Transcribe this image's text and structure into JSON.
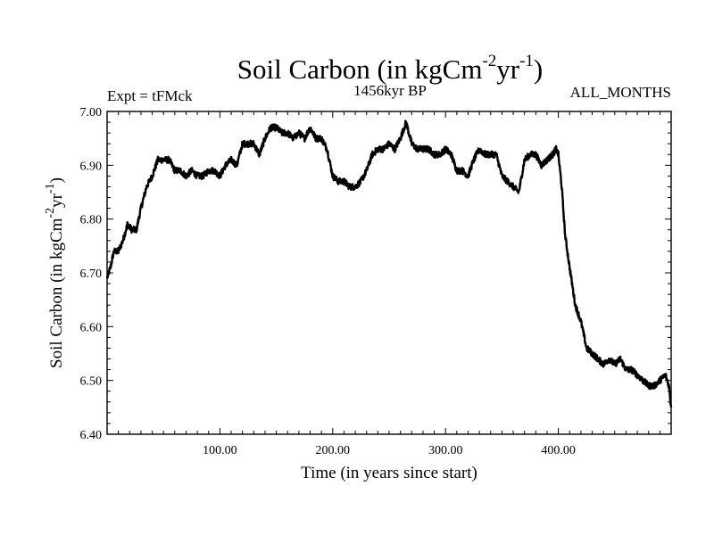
{
  "chart_data": {
    "type": "line",
    "title": {
      "main": "Soil Carbon (in kgCm",
      "sup1": "-2",
      "mid": "yr",
      "sup2": "-1",
      "end": ")"
    },
    "subtitle_left": "Expt = tFMck",
    "subtitle_center": "1456kyr BP",
    "subtitle_right": "ALL_MONTHS",
    "xlabel": "Time (in years since start)",
    "ylabel": {
      "main": "Soil Carbon (in kgCm",
      "sup1": "-2",
      "mid": "yr",
      "sup2": "-1",
      "end": ")"
    },
    "xlim": [
      0,
      500
    ],
    "ylim": [
      6.4,
      7.0
    ],
    "x_ticks": [
      100,
      200,
      300,
      400
    ],
    "x_tick_labels": [
      "100.00",
      "200.00",
      "300.00",
      "400.00"
    ],
    "y_ticks": [
      6.4,
      6.5,
      6.6,
      6.7,
      6.8,
      6.9,
      7.0
    ],
    "y_tick_labels": [
      "6.40",
      "6.50",
      "6.60",
      "6.70",
      "6.80",
      "6.90",
      "7.00"
    ],
    "grid": false,
    "series": [
      {
        "name": "Soil Carbon",
        "color": "#000000",
        "x": [
          0,
          3,
          6,
          10,
          14,
          18,
          22,
          26,
          30,
          35,
          40,
          45,
          50,
          55,
          60,
          65,
          70,
          75,
          80,
          85,
          90,
          95,
          100,
          105,
          110,
          115,
          120,
          125,
          130,
          135,
          140,
          145,
          150,
          155,
          160,
          165,
          170,
          175,
          180,
          185,
          190,
          195,
          200,
          205,
          210,
          215,
          220,
          225,
          230,
          235,
          240,
          245,
          250,
          255,
          260,
          265,
          270,
          275,
          280,
          285,
          290,
          295,
          300,
          305,
          310,
          315,
          320,
          325,
          330,
          335,
          340,
          345,
          350,
          355,
          360,
          365,
          370,
          375,
          380,
          385,
          390,
          395,
          398,
          400,
          403,
          406,
          410,
          415,
          420,
          425,
          430,
          435,
          440,
          445,
          450,
          455,
          460,
          465,
          470,
          475,
          480,
          485,
          490,
          495,
          498,
          500
        ],
        "y": [
          6.69,
          6.71,
          6.74,
          6.74,
          6.76,
          6.79,
          6.78,
          6.78,
          6.82,
          6.86,
          6.88,
          6.91,
          6.91,
          6.91,
          6.89,
          6.89,
          6.88,
          6.89,
          6.88,
          6.88,
          6.89,
          6.89,
          6.88,
          6.9,
          6.91,
          6.9,
          6.94,
          6.94,
          6.94,
          6.92,
          6.95,
          6.97,
          6.97,
          6.96,
          6.96,
          6.95,
          6.96,
          6.95,
          6.97,
          6.95,
          6.95,
          6.93,
          6.88,
          6.87,
          6.87,
          6.86,
          6.86,
          6.87,
          6.89,
          6.92,
          6.93,
          6.93,
          6.94,
          6.93,
          6.95,
          6.98,
          6.94,
          6.93,
          6.93,
          6.93,
          6.92,
          6.92,
          6.93,
          6.92,
          6.89,
          6.89,
          6.88,
          6.91,
          6.93,
          6.92,
          6.92,
          6.92,
          6.88,
          6.87,
          6.86,
          6.85,
          6.91,
          6.92,
          6.92,
          6.9,
          6.91,
          6.92,
          6.93,
          6.92,
          6.86,
          6.77,
          6.71,
          6.64,
          6.61,
          6.56,
          6.55,
          6.54,
          6.53,
          6.54,
          6.53,
          6.54,
          6.52,
          6.52,
          6.51,
          6.5,
          6.49,
          6.49,
          6.5,
          6.51,
          6.49,
          6.45
        ]
      }
    ]
  }
}
